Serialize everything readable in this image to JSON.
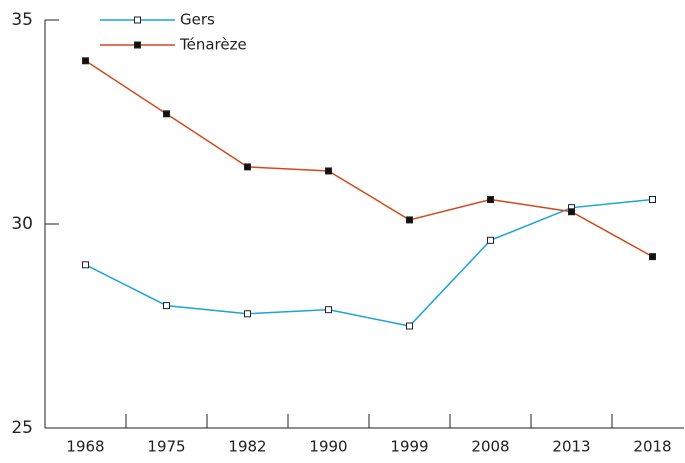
{
  "chart_data": {
    "type": "line",
    "categories": [
      "1968",
      "1975",
      "1982",
      "1990",
      "1999",
      "2008",
      "2013",
      "2018"
    ],
    "series": [
      {
        "name": "Gers",
        "color": "#1aa3dc",
        "marker_fill": "#ffffff",
        "values": [
          29.0,
          28.0,
          27.8,
          27.9,
          27.5,
          29.6,
          30.4,
          30.6
        ]
      },
      {
        "name": "Ténarèze",
        "color": "#d04a1e",
        "marker_fill": "#111111",
        "values": [
          34.0,
          32.7,
          31.4,
          31.3,
          30.1,
          30.6,
          30.3,
          29.2
        ]
      }
    ],
    "ylim": [
      25,
      35
    ],
    "yticks": [
      25,
      30,
      35
    ],
    "legend": "top-left"
  }
}
